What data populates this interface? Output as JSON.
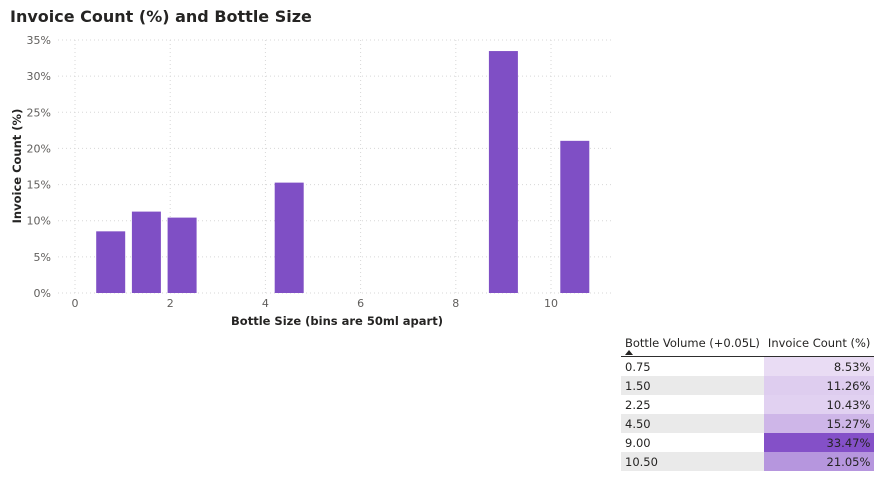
{
  "chart_data": [
    {
      "type": "bar",
      "title": "Invoice Count (%) and Bottle Size",
      "xlabel": "Bottle Size (bins are 50ml apart)",
      "ylabel": "Invoice Count (%)",
      "x": [
        0.75,
        1.5,
        2.25,
        4.5,
        9.0,
        10.5
      ],
      "values": [
        8.53,
        11.26,
        10.43,
        15.27,
        33.47,
        21.05
      ],
      "xlim": [
        0,
        11
      ],
      "ylim": [
        0,
        35
      ],
      "xticks": [
        0,
        2,
        4,
        6,
        8,
        10
      ],
      "yticks": [
        0,
        5,
        10,
        15,
        20,
        25,
        30,
        35
      ],
      "ytick_suffix": "%",
      "grid": true,
      "bar_color": "#7f4fc5"
    },
    {
      "type": "table",
      "columns": [
        "Bottle Volume (+0.05L)",
        "Invoice Count (%)"
      ],
      "sort": "ascending",
      "rows": [
        [
          "0.75",
          "8.53%"
        ],
        [
          "1.50",
          "11.26%"
        ],
        [
          "2.25",
          "10.43%"
        ],
        [
          "4.50",
          "15.27%"
        ],
        [
          "9.00",
          "33.47%"
        ],
        [
          "10.50",
          "21.05%"
        ]
      ],
      "heat_values": [
        8.53,
        11.26,
        10.43,
        15.27,
        33.47,
        21.05
      ],
      "heat_color_high": "#8450c8",
      "heat_color_low": "#e9dcf4"
    }
  ]
}
